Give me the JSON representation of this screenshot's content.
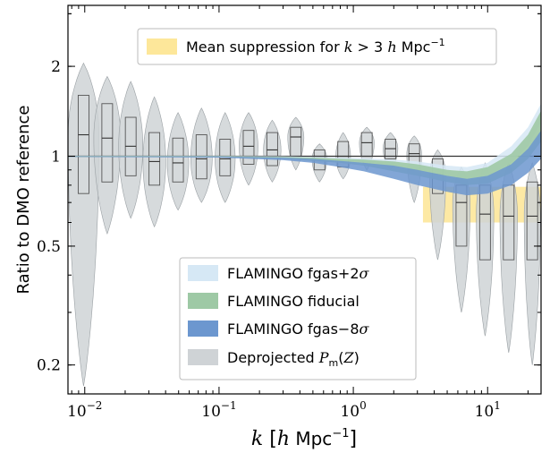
{
  "chart_data": {
    "type": "violin",
    "xlabel": "k [h Mpc⁻¹]",
    "ylabel": "Ratio to DMO reference",
    "xscale": "log",
    "yscale": "log",
    "xlim": [
      0.0075,
      25
    ],
    "ylim": [
      0.16,
      3.2
    ],
    "x_ticks": [
      {
        "value": 0.01,
        "base": "10",
        "exp": "−2"
      },
      {
        "value": 0.1,
        "base": "10",
        "exp": "−1"
      },
      {
        "value": 1,
        "base": "10",
        "exp": "0"
      },
      {
        "value": 10,
        "base": "10",
        "exp": "1"
      }
    ],
    "y_ticks": [
      {
        "value": 0.2,
        "label": "0.2"
      },
      {
        "value": 0.5,
        "label": "0.5"
      },
      {
        "value": 1,
        "label": "1"
      },
      {
        "value": 2,
        "label": "2"
      }
    ],
    "reference_line": 1,
    "legends": {
      "upper": {
        "placement": "top-center",
        "entries": [
          {
            "name": "Mean suppression for k > 3 h Mpc⁻¹",
            "color": "#fde79a"
          }
        ]
      },
      "lower": {
        "placement": "lower-center",
        "entries": [
          {
            "name": "FLAMINGO fgas+2σ",
            "color": "#d6e8f5"
          },
          {
            "name": "FLAMINGO fiducial",
            "color": "#9ec9a5"
          },
          {
            "name": "FLAMINGO fgas−8σ",
            "color": "#6c97cf"
          },
          {
            "name": "Deprojected Pₘ(Z)",
            "color": "#cfd3d6"
          }
        ]
      }
    },
    "mean_suppression": {
      "k_min": 3.3,
      "k_max": 25,
      "lower": 0.6,
      "upper": 0.79
    },
    "violins": [
      {
        "k": 0.0098,
        "q1": 0.75,
        "median": 1.18,
        "q3": 1.6,
        "min": 0.17,
        "max": 2.05,
        "width": 0.23
      },
      {
        "k": 0.0147,
        "q1": 0.82,
        "median": 1.15,
        "q3": 1.5,
        "min": 0.55,
        "max": 1.85,
        "width": 0.2
      },
      {
        "k": 0.022,
        "q1": 0.86,
        "median": 1.08,
        "q3": 1.35,
        "min": 0.62,
        "max": 1.78,
        "width": 0.18
      },
      {
        "k": 0.033,
        "q1": 0.8,
        "median": 0.96,
        "q3": 1.2,
        "min": 0.58,
        "max": 1.58,
        "width": 0.17
      },
      {
        "k": 0.0495,
        "q1": 0.82,
        "median": 0.95,
        "q3": 1.15,
        "min": 0.66,
        "max": 1.4,
        "width": 0.16
      },
      {
        "k": 0.074,
        "q1": 0.84,
        "median": 0.98,
        "q3": 1.18,
        "min": 0.7,
        "max": 1.45,
        "width": 0.16
      },
      {
        "k": 0.111,
        "q1": 0.86,
        "median": 0.98,
        "q3": 1.14,
        "min": 0.7,
        "max": 1.4,
        "width": 0.15
      },
      {
        "k": 0.166,
        "q1": 0.94,
        "median": 1.08,
        "q3": 1.22,
        "min": 0.8,
        "max": 1.4,
        "width": 0.14
      },
      {
        "k": 0.249,
        "q1": 0.93,
        "median": 1.05,
        "q3": 1.2,
        "min": 0.82,
        "max": 1.32,
        "width": 0.13
      },
      {
        "k": 0.373,
        "q1": 1.0,
        "median": 1.16,
        "q3": 1.25,
        "min": 0.9,
        "max": 1.35,
        "width": 0.12
      },
      {
        "k": 0.56,
        "q1": 0.9,
        "median": 0.98,
        "q3": 1.05,
        "min": 0.82,
        "max": 1.1,
        "width": 0.11
      },
      {
        "k": 0.84,
        "q1": 0.92,
        "median": 1.0,
        "q3": 1.12,
        "min": 0.84,
        "max": 1.2,
        "width": 0.11
      },
      {
        "k": 1.26,
        "q1": 1.0,
        "median": 1.11,
        "q3": 1.2,
        "min": 0.9,
        "max": 1.25,
        "width": 0.11
      },
      {
        "k": 1.89,
        "q1": 0.98,
        "median": 1.06,
        "q3": 1.14,
        "min": 0.9,
        "max": 1.2,
        "width": 0.11
      },
      {
        "k": 2.84,
        "q1": 0.9,
        "median": 1.02,
        "q3": 1.1,
        "min": 0.7,
        "max": 1.17,
        "width": 0.11
      },
      {
        "k": 4.25,
        "q1": 0.75,
        "median": 0.87,
        "q3": 0.98,
        "min": 0.45,
        "max": 1.05,
        "width": 0.12
      },
      {
        "k": 6.38,
        "q1": 0.5,
        "median": 0.7,
        "q3": 0.8,
        "min": 0.3,
        "max": 0.92,
        "width": 0.13
      },
      {
        "k": 9.57,
        "q1": 0.45,
        "median": 0.64,
        "q3": 0.8,
        "min": 0.25,
        "max": 0.95,
        "width": 0.13
      },
      {
        "k": 14.35,
        "q1": 0.45,
        "median": 0.63,
        "q3": 0.8,
        "min": 0.22,
        "max": 0.95,
        "width": 0.13
      },
      {
        "k": 21.5,
        "q1": 0.45,
        "median": 0.63,
        "q3": 0.82,
        "min": 0.2,
        "max": 0.95,
        "width": 0.12
      }
    ],
    "flamingo_bands": [
      {
        "name": "FLAMINGO fgas+2σ",
        "color": "#d6e8f5",
        "opacity": 0.85,
        "k": [
          0.0075,
          0.1,
          0.3,
          0.5,
          0.8,
          1.2,
          2,
          3,
          5,
          7,
          10,
          15,
          20,
          25
        ],
        "lower": [
          0.997,
          0.995,
          0.985,
          0.975,
          0.965,
          0.955,
          0.93,
          0.9,
          0.86,
          0.84,
          0.86,
          0.95,
          1.08,
          1.3
        ],
        "upper": [
          1.003,
          1.003,
          1.0,
          0.995,
          0.99,
          0.985,
          0.975,
          0.96,
          0.93,
          0.92,
          0.95,
          1.08,
          1.25,
          1.5
        ]
      },
      {
        "name": "FLAMINGO fiducial",
        "color": "#9ec9a5",
        "opacity": 0.9,
        "k": [
          0.0075,
          0.1,
          0.3,
          0.5,
          0.8,
          1.2,
          2,
          3,
          5,
          7,
          10,
          15,
          20,
          25
        ],
        "lower": [
          0.996,
          0.994,
          0.98,
          0.965,
          0.95,
          0.93,
          0.89,
          0.86,
          0.82,
          0.8,
          0.81,
          0.88,
          0.98,
          1.12
        ],
        "upper": [
          1.002,
          1.001,
          0.995,
          0.99,
          0.98,
          0.975,
          0.96,
          0.94,
          0.9,
          0.89,
          0.92,
          1.02,
          1.18,
          1.42
        ]
      },
      {
        "name": "FLAMINGO fgas−8σ",
        "color": "#6c97cf",
        "opacity": 0.85,
        "k": [
          0.0075,
          0.1,
          0.3,
          0.5,
          0.8,
          1.2,
          2,
          3,
          5,
          7,
          10,
          15,
          20,
          25
        ],
        "lower": [
          0.995,
          0.99,
          0.97,
          0.95,
          0.92,
          0.89,
          0.84,
          0.8,
          0.76,
          0.74,
          0.75,
          0.8,
          0.88,
          0.98
        ],
        "upper": [
          1.0,
          0.998,
          0.99,
          0.98,
          0.965,
          0.95,
          0.93,
          0.9,
          0.86,
          0.84,
          0.86,
          0.94,
          1.06,
          1.22
        ]
      }
    ]
  }
}
